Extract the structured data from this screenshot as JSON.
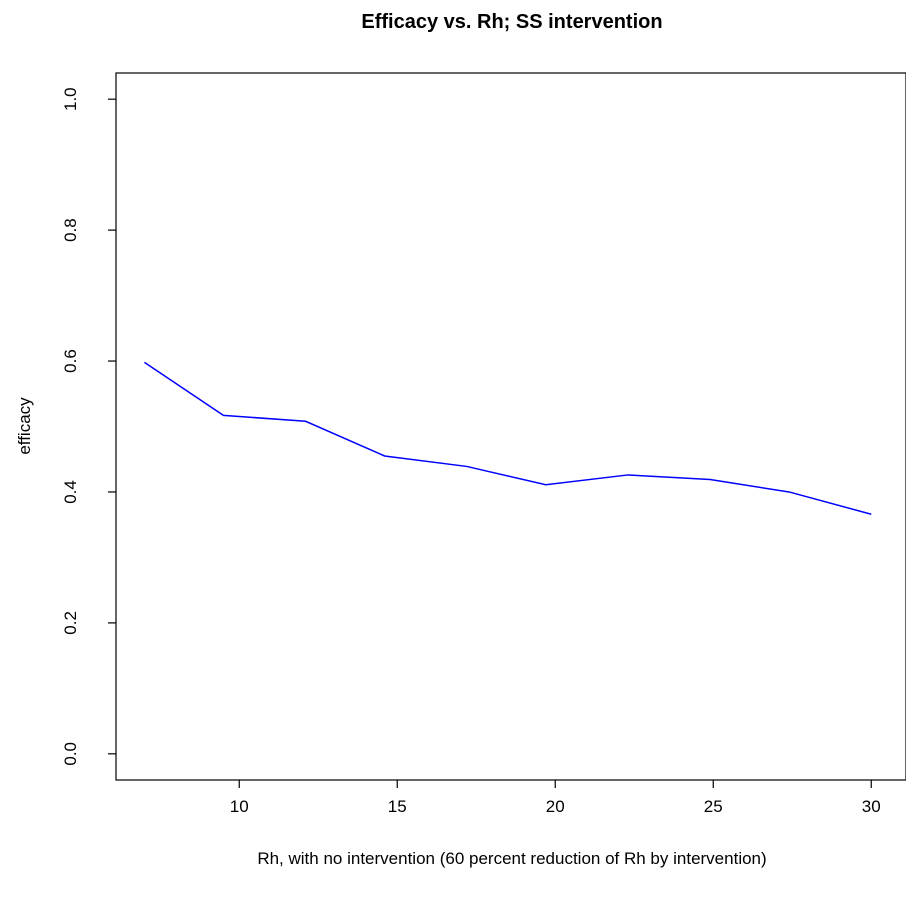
{
  "chart_data": {
    "type": "line",
    "title": "Efficacy vs. Rh; SS intervention",
    "xlabel": "Rh, with no intervention (60 percent reduction of Rh by intervention)",
    "ylabel": "efficacy",
    "xlim": [
      6.1,
      31.1
    ],
    "ylim": [
      -0.04,
      1.04
    ],
    "x_ticks": [
      10,
      15,
      20,
      25,
      30
    ],
    "y_ticks": [
      0.0,
      0.2,
      0.4,
      0.6,
      0.8,
      1.0
    ],
    "x_tick_labels": [
      "10",
      "15",
      "20",
      "25",
      "30"
    ],
    "y_tick_labels": [
      "0.0",
      "0.2",
      "0.4",
      "0.6",
      "0.8",
      "1.0"
    ],
    "grid": false,
    "colors": {
      "line": "#0000ff",
      "axis": "#000000"
    },
    "series": [
      {
        "x": [
          7.0,
          9.5,
          12.1,
          14.6,
          17.2,
          19.7,
          22.3,
          24.9,
          27.4,
          30.0
        ],
        "y": [
          0.598,
          0.517,
          0.508,
          0.455,
          0.439,
          0.411,
          0.426,
          0.419,
          0.4,
          0.366
        ]
      }
    ]
  }
}
